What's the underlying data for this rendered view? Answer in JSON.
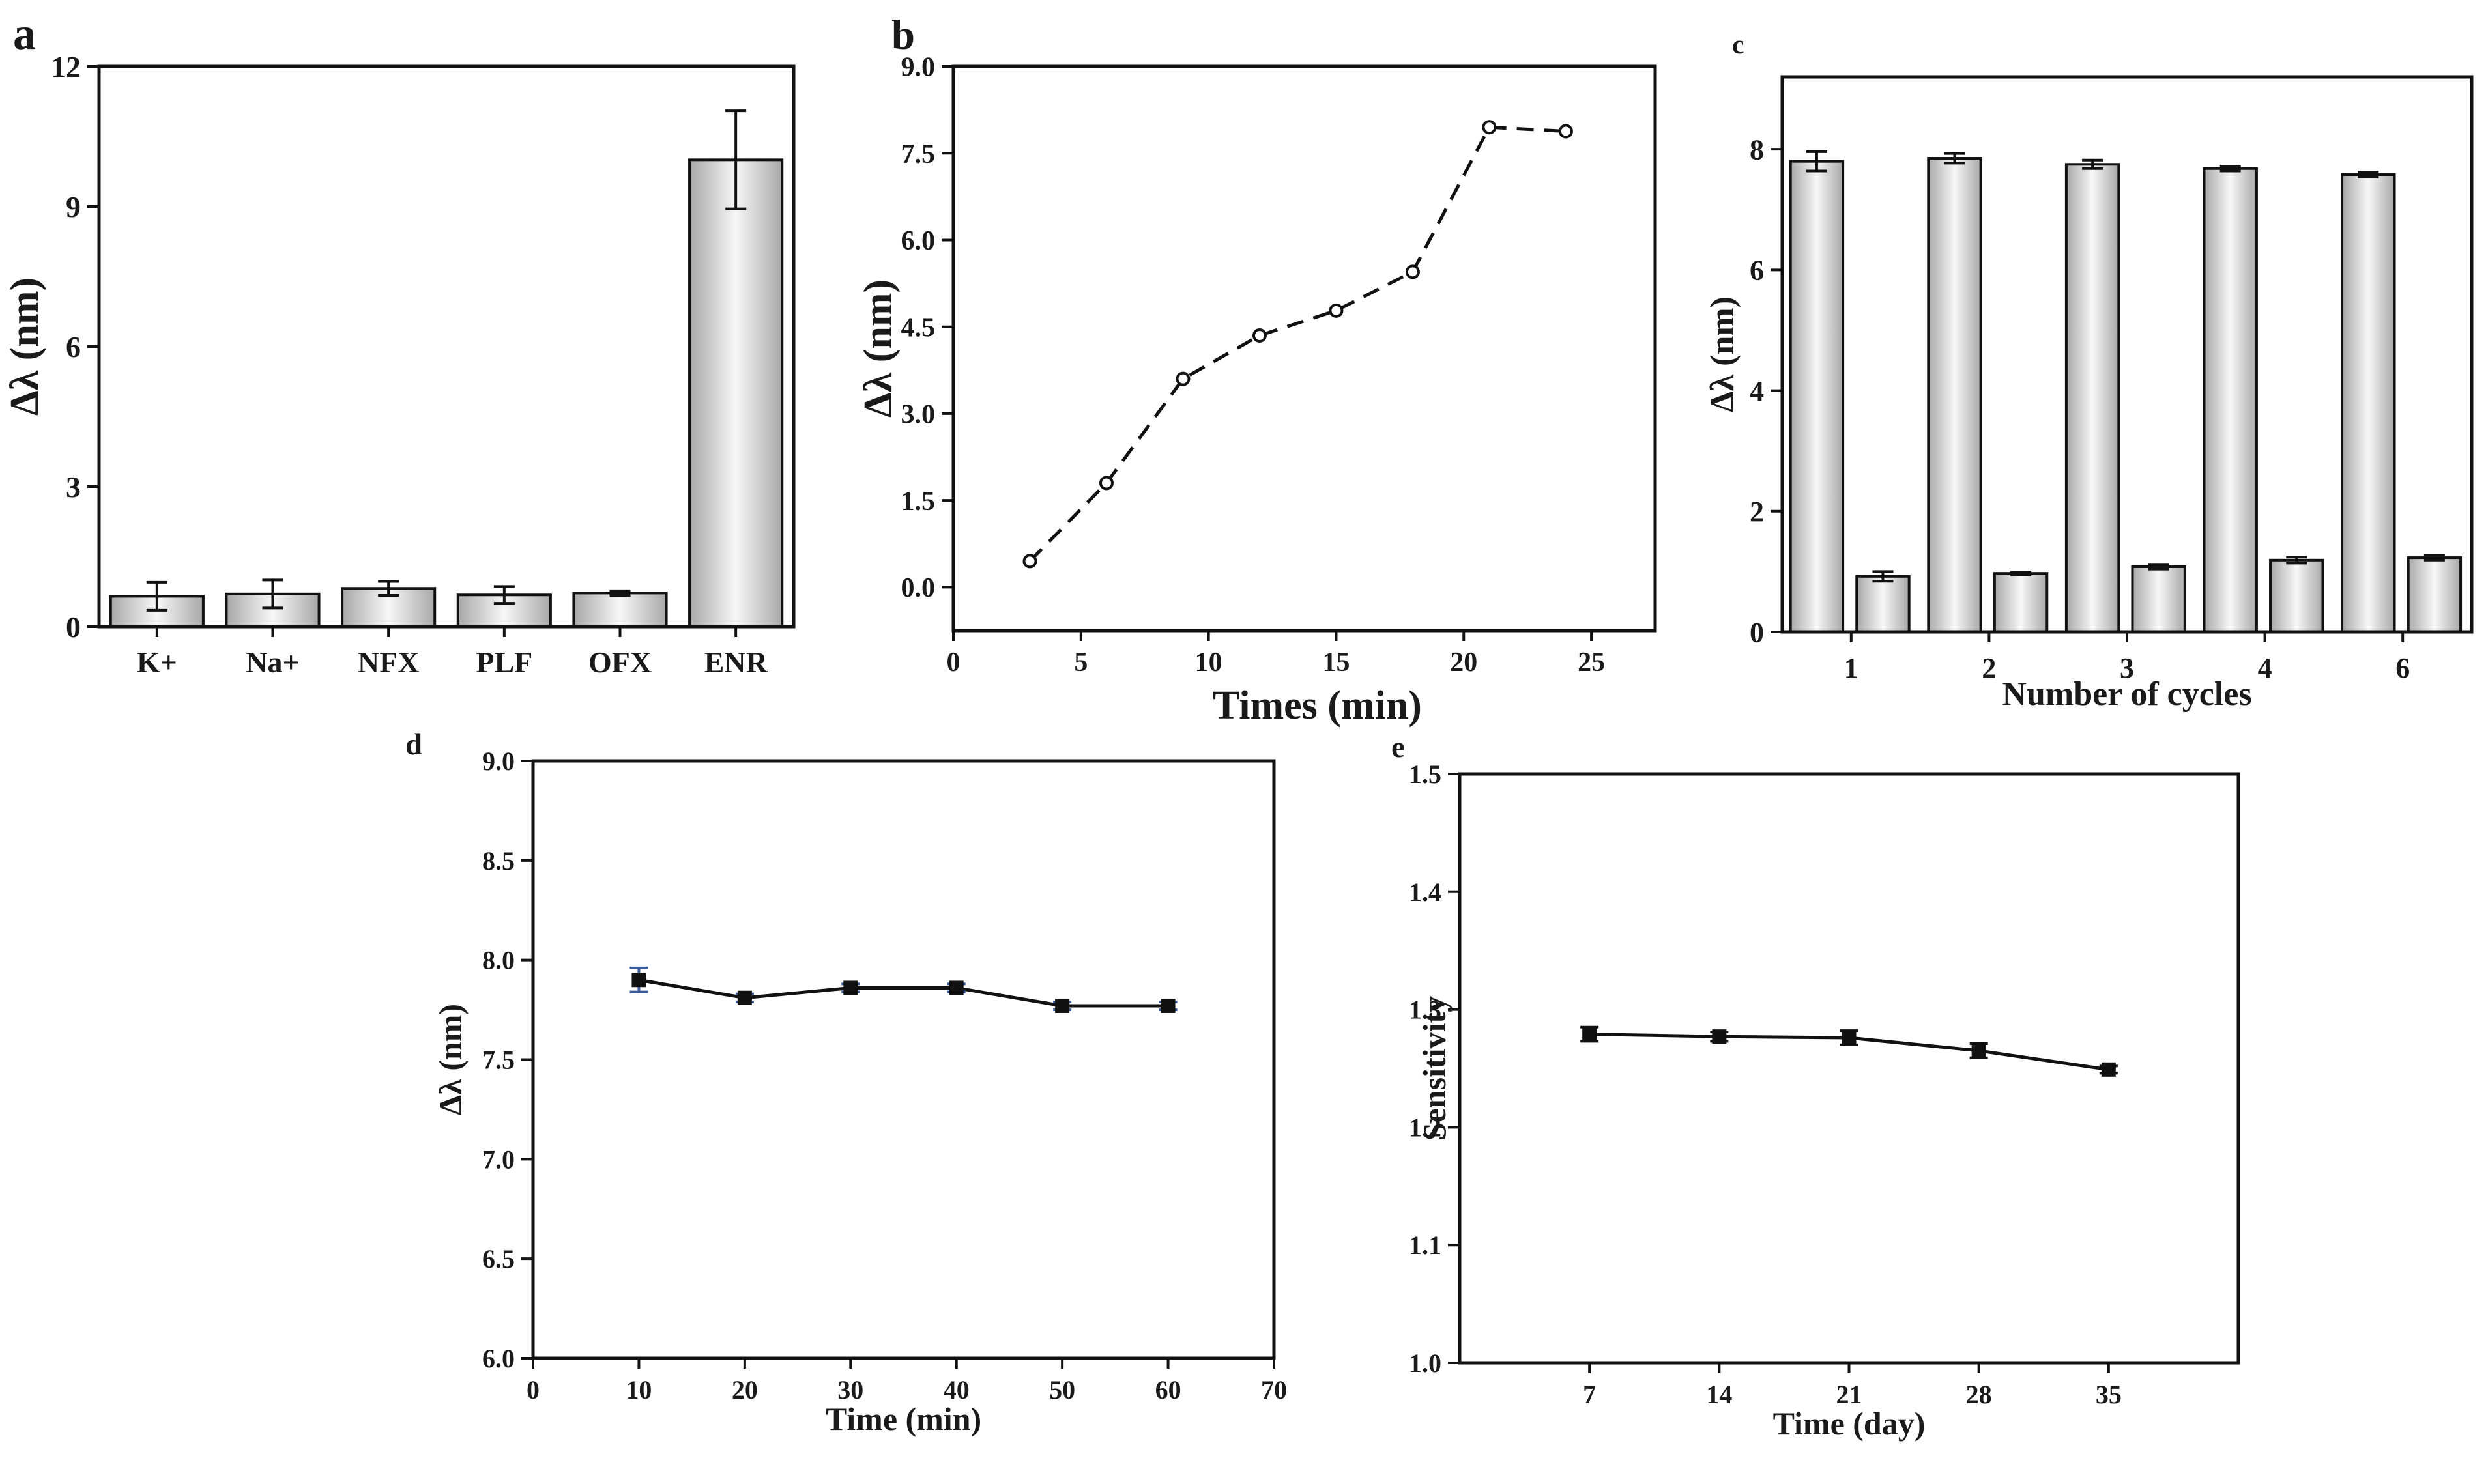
{
  "chart_data": [
    {
      "panel": "a",
      "type": "bar",
      "xlabel": "",
      "ylabel": "Δλ (nm)",
      "ylim": [
        0,
        12
      ],
      "yticks": [
        0,
        3,
        6,
        9,
        12
      ],
      "categories": [
        "K+",
        "Na+",
        "NFX",
        "PLF",
        "OFX",
        "ENR"
      ],
      "values": [
        0.65,
        0.7,
        0.82,
        0.68,
        0.72,
        10.0
      ],
      "errors": [
        0.3,
        0.3,
        0.15,
        0.18,
        0.05,
        1.05
      ],
      "bar_fill": "gradient-gray"
    },
    {
      "panel": "b",
      "type": "line",
      "xlabel": "Times (min)",
      "ylabel": "Δλ (nm)",
      "xlim": [
        0,
        27.5
      ],
      "ylim": [
        -0.75,
        9.0
      ],
      "xticks": [
        0,
        5,
        10,
        15,
        20,
        25
      ],
      "yticks": [
        "0.0",
        "1.5",
        "3.0",
        "4.5",
        "6.0",
        "7.5",
        "9.0"
      ],
      "x": [
        3,
        6,
        9,
        12,
        15,
        18,
        21,
        24
      ],
      "y": [
        0.45,
        1.8,
        3.6,
        4.35,
        4.78,
        5.45,
        7.95,
        7.88
      ],
      "line_style": "dashed",
      "marker": "open-circle"
    },
    {
      "panel": "c",
      "type": "bar",
      "xlabel": "Number of cycles",
      "ylabel": "Δλ (nm)",
      "ylim": [
        0,
        9.2
      ],
      "yticks": [
        0,
        2,
        4,
        6,
        8
      ],
      "categories": [
        "1",
        "2",
        "3",
        "4",
        "6"
      ],
      "series": [
        {
          "values": [
            7.8,
            7.85,
            7.75,
            7.68,
            7.58
          ],
          "errors": [
            0.16,
            0.08,
            0.07,
            0.04,
            0.04
          ]
        },
        {
          "values": [
            0.92,
            0.97,
            1.08,
            1.19,
            1.23
          ],
          "errors": [
            0.08,
            0.02,
            0.04,
            0.05,
            0.04
          ]
        }
      ],
      "bar_fill": "gradient-gray"
    },
    {
      "panel": "d",
      "type": "line",
      "xlabel": "Time (min)",
      "ylabel": "Δλ (nm)",
      "xlim": [
        0,
        70
      ],
      "ylim": [
        6.0,
        9.0
      ],
      "xticks": [
        0,
        10,
        20,
        30,
        40,
        50,
        60,
        70
      ],
      "yticks": [
        "6.0",
        "6.5",
        "7.0",
        "7.5",
        "8.0",
        "8.5",
        "9.0"
      ],
      "x": [
        10,
        20,
        30,
        40,
        50,
        60
      ],
      "y": [
        7.9,
        7.81,
        7.86,
        7.86,
        7.77,
        7.77
      ],
      "errors": [
        0.06,
        0.02,
        0.02,
        0.02,
        0.02,
        0.02
      ],
      "marker": "filled-square",
      "errorbar_color": "#3a5a9a"
    },
    {
      "panel": "e",
      "type": "line",
      "xlabel": "Time (day)",
      "ylabel": "Sensitivity",
      "xlim": [
        0,
        42
      ],
      "ylim": [
        1.0,
        1.5
      ],
      "xticks": [
        7,
        14,
        21,
        28,
        35
      ],
      "yticks": [
        "1.0",
        "1.1",
        "1.2",
        "1.3",
        "1.4",
        "1.5"
      ],
      "x": [
        7,
        14,
        21,
        28,
        35
      ],
      "y": [
        1.279,
        1.277,
        1.276,
        1.265,
        1.249
      ],
      "errors": [
        0.006,
        0.004,
        0.006,
        0.006,
        0.003
      ],
      "marker": "filled-square"
    }
  ],
  "colors": {
    "bar_light": "#f7f7f7",
    "bar_dark": "#a8a8a8",
    "ink": "#111111"
  }
}
